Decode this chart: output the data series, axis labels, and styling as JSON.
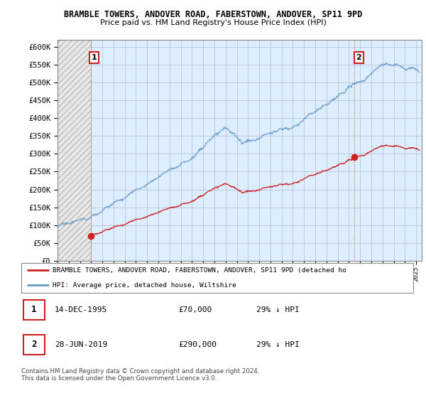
{
  "title1": "BRAMBLE TOWERS, ANDOVER ROAD, FABERSTOWN, ANDOVER, SP11 9PD",
  "title2": "Price paid vs. HM Land Registry's House Price Index (HPI)",
  "background_color": "#ffffff",
  "hpi_color": "#6699cc",
  "price_color": "#cc2222",
  "sale1_year": 1995.96,
  "sale1_price": 70000,
  "sale2_year": 2019.49,
  "sale2_price": 290000,
  "ylim": [
    0,
    620000
  ],
  "yticks": [
    0,
    50000,
    100000,
    150000,
    200000,
    250000,
    300000,
    350000,
    400000,
    450000,
    500000,
    550000,
    600000
  ],
  "ytick_labels": [
    "£0",
    "£50K",
    "£100K",
    "£150K",
    "£200K",
    "£250K",
    "£300K",
    "£350K",
    "£400K",
    "£450K",
    "£500K",
    "£550K",
    "£600K"
  ],
  "legend_label_red": "BRAMBLE TOWERS, ANDOVER ROAD, FABERSTOWN, ANDOVER, SP11 9PD (detached ho",
  "legend_label_blue": "HPI: Average price, detached house, Wiltshire",
  "table_row1": [
    "1",
    "14-DEC-1995",
    "£70,000",
    "29% ↓ HPI"
  ],
  "table_row2": [
    "2",
    "28-JUN-2019",
    "£290,000",
    "29% ↓ HPI"
  ],
  "copyright_text": "Contains HM Land Registry data © Crown copyright and database right 2024.\nThis data is licensed under the Open Government Licence v3.0.",
  "xmin": 1993.0,
  "xmax": 2025.5
}
